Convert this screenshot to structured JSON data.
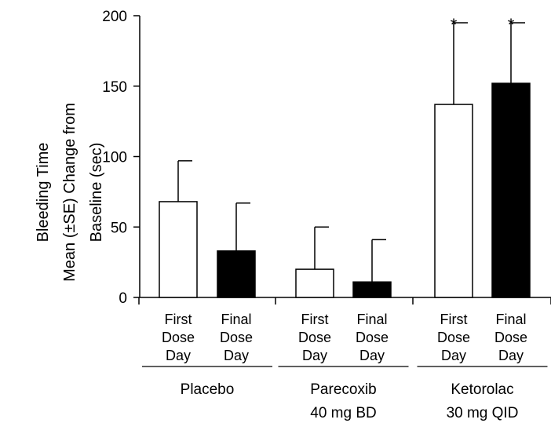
{
  "chart_data": {
    "type": "bar",
    "title": "",
    "ylabel_lines": [
      "Bleeding Time",
      "Mean (±SE) Change from",
      "Baseline (sec)"
    ],
    "ylim": [
      0,
      200
    ],
    "yticks": [
      0,
      50,
      100,
      150,
      200
    ],
    "grid": false,
    "legend": "none",
    "categories": [
      {
        "label_lines": [
          "First",
          "Dose",
          "Day"
        ],
        "group": "Placebo",
        "value": 68,
        "se": 29,
        "fill": "#ffffff",
        "annotation": ""
      },
      {
        "label_lines": [
          "Final",
          "Dose",
          "Day"
        ],
        "group": "Placebo",
        "value": 33,
        "se": 34,
        "fill": "#000000",
        "annotation": ""
      },
      {
        "label_lines": [
          "First",
          "Dose",
          "Day"
        ],
        "group": "Parecoxib",
        "value": 20,
        "se": 30,
        "fill": "#ffffff",
        "annotation": ""
      },
      {
        "label_lines": [
          "Final",
          "Dose",
          "Day"
        ],
        "group": "Parecoxib",
        "value": 11,
        "se": 30,
        "fill": "#000000",
        "annotation": ""
      },
      {
        "label_lines": [
          "First",
          "Dose",
          "Day"
        ],
        "group": "Ketorolac",
        "value": 137,
        "se": 58,
        "fill": "#ffffff",
        "annotation": "*"
      },
      {
        "label_lines": [
          "Final",
          "Dose",
          "Day"
        ],
        "group": "Ketorolac",
        "value": 152,
        "se": 43,
        "fill": "#000000",
        "annotation": "*"
      }
    ],
    "groups": [
      {
        "label_lines": [
          "Placebo"
        ]
      },
      {
        "label_lines": [
          "Parecoxib",
          "40 mg BD"
        ]
      },
      {
        "label_lines": [
          "Ketorolac",
          "30 mg QID"
        ]
      }
    ]
  }
}
